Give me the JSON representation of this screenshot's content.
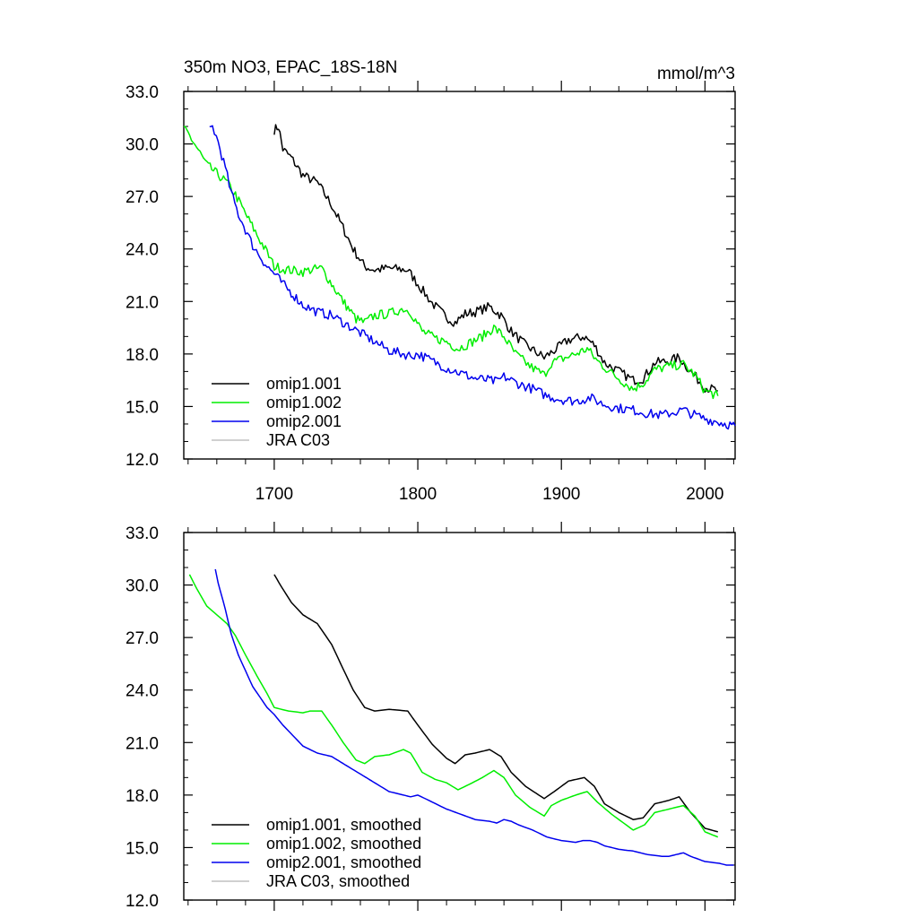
{
  "chart_data": [
    {
      "type": "line",
      "title": "350m NO3, EPAC_18S-18N",
      "units": "mmol/m^3",
      "xlabel": "",
      "ylabel": "",
      "xlim": [
        1637,
        2021
      ],
      "ylim": [
        12,
        33
      ],
      "xticks": [
        1700,
        1800,
        1900,
        2000
      ],
      "xtick_labels": [
        "1700",
        "1800",
        "1900",
        "2000"
      ],
      "yticks": [
        12,
        15,
        18,
        21,
        24,
        27,
        30,
        33
      ],
      "ytick_labels": [
        "12.0",
        "15.0",
        "18.0",
        "21.0",
        "24.0",
        "27.0",
        "30.0",
        "33.0"
      ],
      "legend_position": "bottom-left",
      "series": [
        {
          "name": "omip1.001",
          "color": "#000000",
          "x": [
            1700,
            1703,
            1706,
            1712,
            1720,
            1730,
            1740,
            1748,
            1755,
            1763,
            1770,
            1780,
            1793,
            1800,
            1810,
            1820,
            1826,
            1833,
            1840,
            1850,
            1858,
            1865,
            1875,
            1888,
            1895,
            1905,
            1916,
            1923,
            1930,
            1940,
            1950,
            1957,
            1965,
            1975,
            1982,
            1990,
            2000,
            2009
          ],
          "y": [
            30.8,
            31.0,
            29.7,
            29.2,
            28.2,
            27.8,
            26.5,
            25.2,
            24.0,
            23.0,
            22.8,
            22.9,
            22.8,
            22.0,
            20.9,
            20.1,
            19.8,
            20.3,
            20.4,
            20.7,
            20.2,
            19.3,
            18.5,
            17.8,
            18.2,
            18.8,
            19.0,
            18.5,
            17.5,
            17.0,
            16.5,
            16.6,
            17.5,
            17.6,
            17.8,
            17.0,
            16.1,
            15.9
          ]
        },
        {
          "name": "omip1.002",
          "color": "#00ee00",
          "x": [
            1637,
            1640,
            1646,
            1653,
            1660,
            1667,
            1673,
            1680,
            1688,
            1695,
            1700,
            1710,
            1720,
            1725,
            1733,
            1740,
            1748,
            1757,
            1763,
            1770,
            1780,
            1790,
            1795,
            1803,
            1812,
            1820,
            1828,
            1838,
            1845,
            1853,
            1860,
            1868,
            1878,
            1888,
            1893,
            1900,
            1910,
            1918,
            1925,
            1935,
            1945,
            1950,
            1958,
            1965,
            1975,
            1985,
            1993,
            2000,
            2009
          ],
          "y": [
            30.8,
            30.6,
            29.8,
            28.8,
            28.3,
            27.8,
            27.1,
            26.0,
            24.8,
            23.8,
            23.0,
            22.8,
            22.7,
            22.8,
            22.9,
            22.0,
            21.0,
            20.0,
            19.8,
            20.2,
            20.3,
            20.6,
            20.4,
            19.3,
            18.9,
            18.7,
            18.3,
            18.7,
            19.0,
            19.5,
            19.0,
            18.0,
            17.3,
            16.8,
            17.5,
            17.7,
            18.0,
            18.3,
            17.6,
            16.9,
            16.3,
            16.0,
            16.4,
            17.1,
            17.3,
            17.4,
            16.8,
            15.9,
            15.6
          ]
        },
        {
          "name": "omip2.001",
          "color": "#0000ee",
          "x": [
            1655,
            1657,
            1661,
            1666,
            1670,
            1675,
            1680,
            1685,
            1690,
            1695,
            1700,
            1706,
            1713,
            1720,
            1730,
            1740,
            1750,
            1760,
            1770,
            1780,
            1795,
            1800,
            1810,
            1820,
            1830,
            1840,
            1850,
            1855,
            1860,
            1865,
            1870,
            1880,
            1890,
            1900,
            1910,
            1915,
            1920,
            1925,
            1930,
            1940,
            1950,
            1960,
            1970,
            1975,
            1980,
            1985,
            1990,
            2000,
            2010,
            2015,
            2021
          ],
          "y": [
            30.8,
            31.0,
            30.1,
            28.6,
            27.2,
            26.0,
            25.1,
            24.2,
            23.6,
            23.0,
            22.6,
            22.0,
            21.4,
            20.8,
            20.4,
            20.2,
            19.7,
            19.2,
            18.7,
            18.2,
            17.9,
            18.0,
            17.6,
            17.2,
            16.9,
            16.6,
            16.5,
            16.4,
            16.7,
            16.5,
            16.3,
            16.0,
            15.6,
            15.4,
            15.3,
            15.4,
            15.5,
            15.3,
            15.1,
            14.9,
            14.8,
            14.6,
            14.5,
            14.6,
            14.7,
            14.8,
            14.6,
            14.3,
            14.1,
            14.0,
            13.9
          ]
        },
        {
          "name": "JRA C03",
          "color": "#c0c0c0",
          "x": [],
          "y": []
        }
      ]
    },
    {
      "type": "line",
      "title": "",
      "units": "",
      "xlabel": "",
      "ylabel": "",
      "xlim": [
        1637,
        2021
      ],
      "ylim": [
        12,
        33
      ],
      "xticks": [
        1700,
        1800,
        1900,
        2000
      ],
      "yticks": [
        12,
        15,
        18,
        21,
        24,
        27,
        30,
        33
      ],
      "ytick_labels": [
        "12.0",
        "15.0",
        "18.0",
        "21.0",
        "24.0",
        "27.0",
        "30.0",
        "33.0"
      ],
      "legend_position": "bottom-left",
      "series": [
        {
          "name": "omip1.001, smoothed",
          "color": "#000000",
          "x": [
            1700,
            1705,
            1712,
            1720,
            1730,
            1740,
            1748,
            1755,
            1763,
            1770,
            1780,
            1793,
            1800,
            1810,
            1820,
            1826,
            1833,
            1840,
            1850,
            1858,
            1865,
            1875,
            1888,
            1895,
            1905,
            1916,
            1923,
            1930,
            1940,
            1950,
            1957,
            1965,
            1975,
            1982,
            1990,
            2000,
            2009
          ],
          "y": [
            30.6,
            29.9,
            29.0,
            28.3,
            27.8,
            26.6,
            25.2,
            24.0,
            23.0,
            22.8,
            22.9,
            22.8,
            22.0,
            20.9,
            20.1,
            19.8,
            20.3,
            20.4,
            20.6,
            20.2,
            19.3,
            18.5,
            17.8,
            18.2,
            18.8,
            19.0,
            18.5,
            17.5,
            17.0,
            16.6,
            16.7,
            17.5,
            17.7,
            17.9,
            17.0,
            16.1,
            15.9
          ]
        },
        {
          "name": "omip1.002, smoothed",
          "color": "#00ee00",
          "x": [
            1641,
            1646,
            1653,
            1660,
            1667,
            1673,
            1680,
            1688,
            1695,
            1700,
            1710,
            1720,
            1725,
            1733,
            1740,
            1748,
            1757,
            1763,
            1770,
            1780,
            1790,
            1795,
            1803,
            1812,
            1820,
            1828,
            1838,
            1845,
            1853,
            1860,
            1868,
            1878,
            1888,
            1893,
            1900,
            1910,
            1918,
            1925,
            1935,
            1945,
            1950,
            1958,
            1965,
            1975,
            1985,
            1993,
            2000,
            2009
          ],
          "y": [
            30.6,
            29.8,
            28.8,
            28.3,
            27.8,
            27.1,
            26.0,
            24.8,
            23.8,
            23.0,
            22.8,
            22.7,
            22.8,
            22.8,
            22.0,
            21.0,
            20.0,
            19.8,
            20.2,
            20.3,
            20.6,
            20.4,
            19.3,
            18.9,
            18.7,
            18.3,
            18.7,
            19.0,
            19.4,
            19.0,
            18.0,
            17.3,
            16.8,
            17.4,
            17.7,
            18.0,
            18.2,
            17.6,
            16.9,
            16.3,
            16.0,
            16.3,
            17.0,
            17.2,
            17.4,
            16.8,
            15.9,
            15.6
          ]
        },
        {
          "name": "omip2.001, smoothed",
          "color": "#0000ee",
          "x": [
            1659,
            1661,
            1666,
            1670,
            1675,
            1680,
            1685,
            1690,
            1695,
            1700,
            1706,
            1713,
            1720,
            1730,
            1740,
            1750,
            1760,
            1770,
            1780,
            1795,
            1800,
            1810,
            1820,
            1830,
            1840,
            1850,
            1855,
            1860,
            1865,
            1870,
            1880,
            1890,
            1900,
            1910,
            1915,
            1920,
            1925,
            1930,
            1940,
            1950,
            1960,
            1970,
            1975,
            1980,
            1985,
            1990,
            2000,
            2010,
            2015,
            2020
          ],
          "y": [
            30.9,
            30.1,
            28.6,
            27.2,
            26.0,
            25.1,
            24.2,
            23.6,
            23.0,
            22.6,
            22.0,
            21.4,
            20.8,
            20.4,
            20.2,
            19.7,
            19.2,
            18.7,
            18.2,
            17.9,
            18.0,
            17.6,
            17.2,
            16.9,
            16.6,
            16.5,
            16.4,
            16.6,
            16.5,
            16.3,
            16.0,
            15.6,
            15.4,
            15.3,
            15.4,
            15.4,
            15.3,
            15.1,
            14.9,
            14.8,
            14.6,
            14.5,
            14.5,
            14.6,
            14.7,
            14.5,
            14.2,
            14.1,
            14.0,
            14.0
          ]
        },
        {
          "name": "JRA C03, smoothed",
          "color": "#c0c0c0",
          "x": [],
          "y": []
        }
      ]
    }
  ]
}
